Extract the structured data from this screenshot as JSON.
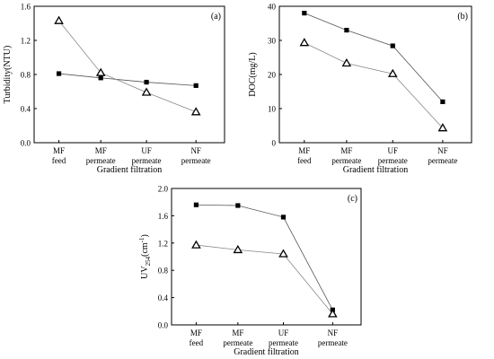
{
  "chart_data": [
    {
      "panel_label": "(a)",
      "type": "line",
      "categories": [
        [
          "MF",
          "feed"
        ],
        [
          "MF",
          "permeate"
        ],
        [
          "UF",
          "permeate"
        ],
        [
          "NF",
          "permeate"
        ]
      ],
      "xlabel": "Gradient filtration",
      "ylabel": "Turbidity(NTU)",
      "ylim": [
        0,
        1.6
      ],
      "yticks": [
        "0.0",
        "0.4",
        "0.8",
        "1.2",
        "1.6"
      ],
      "series": [
        {
          "marker": "square",
          "values": [
            0.81,
            0.76,
            0.71,
            0.67
          ]
        },
        {
          "marker": "triangle",
          "values": [
            1.43,
            0.82,
            0.59,
            0.36
          ]
        }
      ]
    },
    {
      "panel_label": "(b)",
      "type": "line",
      "categories": [
        [
          "MF",
          "feed"
        ],
        [
          "MF",
          "permeate"
        ],
        [
          "UF",
          "permeate"
        ],
        [
          "NF",
          "permeate"
        ]
      ],
      "xlabel": "Gradient filtration",
      "ylabel": "DOC(mg/L)",
      "ylim": [
        0,
        40
      ],
      "yticks": [
        "0",
        "10",
        "20",
        "30",
        "40"
      ],
      "series": [
        {
          "marker": "square",
          "values": [
            38.0,
            33.0,
            28.4,
            12.0
          ]
        },
        {
          "marker": "triangle",
          "values": [
            29.3,
            23.3,
            20.2,
            4.3
          ]
        }
      ]
    },
    {
      "panel_label": "(c)",
      "type": "line",
      "categories": [
        [
          "MF",
          "feed"
        ],
        [
          "MF",
          "permeate"
        ],
        [
          "UF",
          "permeate"
        ],
        [
          "NF",
          "permeate"
        ]
      ],
      "xlabel": "Gradient filtration",
      "ylabel": [
        "UV",
        "254",
        "(cm",
        "-1",
        ")"
      ],
      "ylim": [
        0,
        2.0
      ],
      "yticks": [
        "0.0",
        "0.4",
        "0.8",
        "1.2",
        "1.6",
        "2.0"
      ],
      "series": [
        {
          "marker": "square",
          "values": [
            1.76,
            1.75,
            1.58,
            0.22
          ]
        },
        {
          "marker": "triangle",
          "values": [
            1.17,
            1.1,
            1.04,
            0.16
          ]
        }
      ]
    }
  ]
}
